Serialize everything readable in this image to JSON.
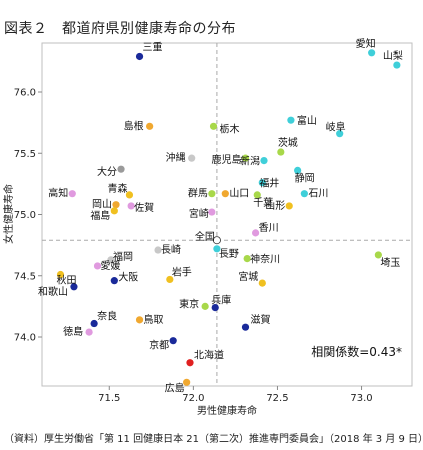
{
  "figure": {
    "title": "図表２　都道府県別健康寿命の分布",
    "source": "（資料）厚生労働省「第 11 回健康日本 21（第二次）推進専門委員会」（2018 年 3 月 9 日）"
  },
  "chart_data": {
    "type": "scatter",
    "xlabel": "男性健康寿命",
    "ylabel": "女性健康寿命",
    "xlim": [
      71.1,
      73.3
    ],
    "ylim": [
      73.6,
      76.4
    ],
    "xticks": [
      "71.5",
      "72.0",
      "72.5",
      "73.0"
    ],
    "yticks": [
      "74.0",
      "74.5",
      "75.0",
      "75.5",
      "76.0"
    ],
    "reference_lines": {
      "x": 72.14,
      "y": 74.79
    },
    "annotation": "相関係数=0.43*",
    "points": [
      {
        "name": "愛知",
        "x": 73.06,
        "y": 76.32,
        "color": "#3fcfd9"
      },
      {
        "name": "山梨",
        "x": 73.21,
        "y": 76.22,
        "color": "#3fcfd9"
      },
      {
        "name": "三重",
        "x": 71.68,
        "y": 76.29,
        "color": "#1a2a9a"
      },
      {
        "name": "島根",
        "x": 71.74,
        "y": 75.72,
        "color": "#f0a830"
      },
      {
        "name": "栃木",
        "x": 72.12,
        "y": 75.72,
        "color": "#a8d84a"
      },
      {
        "name": "富山",
        "x": 72.58,
        "y": 75.77,
        "color": "#3fcfd9"
      },
      {
        "name": "岐阜",
        "x": 72.87,
        "y": 75.66,
        "color": "#3fcfd9"
      },
      {
        "name": "沖縄",
        "x": 71.99,
        "y": 75.46,
        "color": "#c8c8c8"
      },
      {
        "name": "鹿児島",
        "x": 72.31,
        "y": 75.46,
        "color": "#a8d84a"
      },
      {
        "name": "茨城",
        "x": 72.52,
        "y": 75.51,
        "color": "#a8d84a"
      },
      {
        "name": "新潟",
        "x": 72.42,
        "y": 75.44,
        "color": "#3fcfd9"
      },
      {
        "name": "大分",
        "x": 71.57,
        "y": 75.37,
        "color": "#9a9a9a"
      },
      {
        "name": "静岡",
        "x": 72.62,
        "y": 75.36,
        "color": "#3fcfd9"
      },
      {
        "name": "福井",
        "x": 72.41,
        "y": 75.26,
        "color": "#3fcfd9"
      },
      {
        "name": "高知",
        "x": 71.28,
        "y": 75.17,
        "color": "#e09adf"
      },
      {
        "name": "青森",
        "x": 71.62,
        "y": 75.16,
        "color": "#f0c020"
      },
      {
        "name": "群馬",
        "x": 72.11,
        "y": 75.17,
        "color": "#a8d84a"
      },
      {
        "name": "山口",
        "x": 72.19,
        "y": 75.17,
        "color": "#f0a830"
      },
      {
        "name": "千葉",
        "x": 72.38,
        "y": 75.16,
        "color": "#a8d84a"
      },
      {
        "name": "石川",
        "x": 72.66,
        "y": 75.17,
        "color": "#3fcfd9"
      },
      {
        "name": "岡山",
        "x": 71.54,
        "y": 75.08,
        "color": "#f0a830"
      },
      {
        "name": "佐賀",
        "x": 71.63,
        "y": 75.07,
        "color": "#e09adf"
      },
      {
        "name": "福島",
        "x": 71.53,
        "y": 75.03,
        "color": "#f0c020"
      },
      {
        "name": "山形",
        "x": 72.57,
        "y": 75.07,
        "color": "#f0c020"
      },
      {
        "name": "宮崎",
        "x": 72.11,
        "y": 75.02,
        "color": "#e09adf"
      },
      {
        "name": "香川",
        "x": 72.37,
        "y": 74.85,
        "color": "#e09adf"
      },
      {
        "name": "全国",
        "x": 72.14,
        "y": 74.79,
        "color": "#ffffff"
      },
      {
        "name": "長崎",
        "x": 71.79,
        "y": 74.71,
        "color": "#c8c8c8"
      },
      {
        "name": "長野",
        "x": 72.14,
        "y": 74.72,
        "color": "#3fcfd9"
      },
      {
        "name": "神奈川",
        "x": 72.32,
        "y": 74.64,
        "color": "#a8d84a"
      },
      {
        "name": "埼玉",
        "x": 73.1,
        "y": 74.67,
        "color": "#a8d84a"
      },
      {
        "name": "愛媛",
        "x": 71.43,
        "y": 74.58,
        "color": "#e09adf"
      },
      {
        "name": "福岡",
        "x": 71.51,
        "y": 74.63,
        "color": "#c8c8c8"
      },
      {
        "name": "秋田",
        "x": 71.21,
        "y": 74.51,
        "color": "#f0c020"
      },
      {
        "name": "大阪",
        "x": 71.53,
        "y": 74.46,
        "color": "#1a2a9a"
      },
      {
        "name": "岩手",
        "x": 71.86,
        "y": 74.47,
        "color": "#f0c020"
      },
      {
        "name": "宮城",
        "x": 72.41,
        "y": 74.44,
        "color": "#f0c020"
      },
      {
        "name": "和歌山",
        "x": 71.29,
        "y": 74.41,
        "color": "#1a2a9a"
      },
      {
        "name": "東京",
        "x": 72.07,
        "y": 74.25,
        "color": "#a8d84a"
      },
      {
        "name": "兵庫",
        "x": 72.13,
        "y": 74.24,
        "color": "#1a2a9a"
      },
      {
        "name": "奈良",
        "x": 71.41,
        "y": 74.11,
        "color": "#1a2a9a"
      },
      {
        "name": "鳥取",
        "x": 71.68,
        "y": 74.14,
        "color": "#f0a830"
      },
      {
        "name": "滋賀",
        "x": 72.31,
        "y": 74.08,
        "color": "#1a2a9a"
      },
      {
        "name": "徳島",
        "x": 71.38,
        "y": 74.04,
        "color": "#e09adf"
      },
      {
        "name": "京都",
        "x": 71.88,
        "y": 73.97,
        "color": "#1a2a9a"
      },
      {
        "name": "北海道",
        "x": 71.98,
        "y": 73.79,
        "color": "#e02020"
      },
      {
        "name": "広島",
        "x": 71.96,
        "y": 73.63,
        "color": "#f0a830"
      }
    ]
  }
}
